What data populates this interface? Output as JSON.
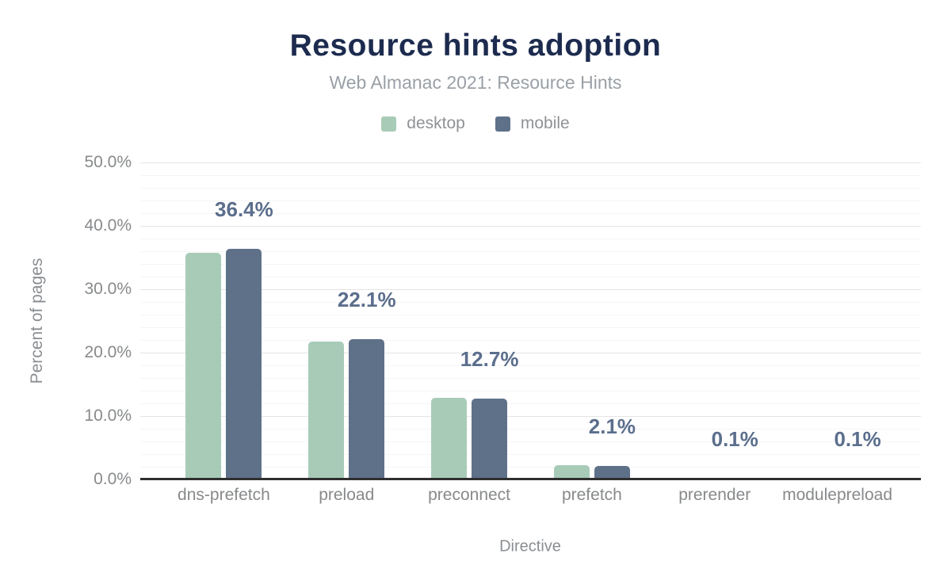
{
  "title": "Resource hints adoption",
  "subtitle": "Web Almanac 2021: Resource Hints",
  "legend": {
    "items": [
      {
        "label": "desktop",
        "color": "#a8cbb8"
      },
      {
        "label": "mobile",
        "color": "#5f7189"
      }
    ]
  },
  "colors": {
    "title": "#1c2b4e",
    "desktop_bar": "#a8cbb8",
    "mobile_bar": "#5f7189",
    "data_label": "#5b6e8c",
    "axis_line": "#2f2f2f",
    "grid_major": "#e4e4e4",
    "grid_minor": "#f5f5f5",
    "muted_text": "#8f9296"
  },
  "chart_data": {
    "type": "bar",
    "title": "Resource hints adoption",
    "subtitle": "Web Almanac 2021: Resource Hints",
    "categories": [
      "dns-prefetch",
      "preload",
      "preconnect",
      "prefetch",
      "prerender",
      "modulepreload"
    ],
    "series": [
      {
        "name": "desktop",
        "color": "#a8cbb8",
        "values": [
          35.8,
          21.8,
          12.9,
          2.3,
          0.1,
          0.1
        ]
      },
      {
        "name": "mobile",
        "color": "#5f7189",
        "values": [
          36.4,
          22.1,
          12.7,
          2.1,
          0.1,
          0.1
        ]
      }
    ],
    "bar_labels": [
      "36.4%",
      "22.1%",
      "12.7%",
      "2.1%",
      "0.1%",
      "0.1%"
    ],
    "xlabel": "Directive",
    "ylabel": "Percent of pages",
    "ylim": [
      0,
      50
    ],
    "ytick_step": 10,
    "yminor_step": 2,
    "ytick_labels": [
      "0.0%",
      "10.0%",
      "20.0%",
      "30.0%",
      "40.0%",
      "50.0%"
    ],
    "grid": "on",
    "legend_position": "top"
  }
}
